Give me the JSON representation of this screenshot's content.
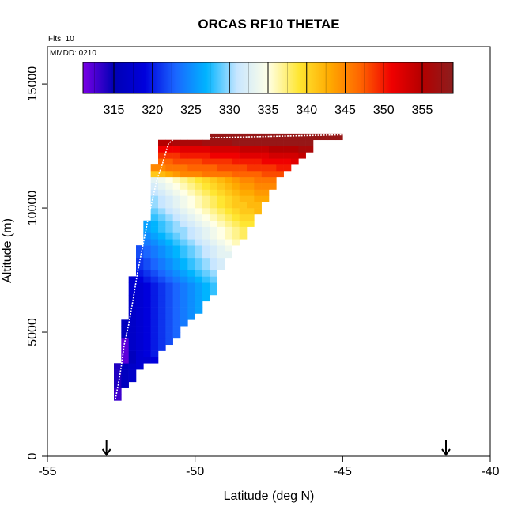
{
  "chart_data": {
    "type": "heatmap",
    "title": "ORCAS RF10 THETAE",
    "annotations": {
      "flights": "Flts: 10",
      "date": "MMDD: 0210"
    },
    "xlabel": "Latitude (deg N)",
    "ylabel": "Altitude (m)",
    "xlim": [
      -55,
      -40
    ],
    "ylim": [
      0,
      16500
    ],
    "x_ticks": [
      -55,
      -50,
      -45,
      -40
    ],
    "x_tick_labels": [
      "-55",
      "-50",
      "-45",
      "-40"
    ],
    "y_ticks": [
      0,
      5000,
      10000,
      15000
    ],
    "y_tick_labels": [
      "0",
      "5000",
      "10000",
      "15000"
    ],
    "grid": false,
    "colorbar": {
      "placement": "top-inside",
      "range": [
        311,
        359
      ],
      "ticks": [
        315,
        320,
        325,
        330,
        335,
        340,
        345,
        350,
        355
      ],
      "tick_labels": [
        "315",
        "320",
        "325",
        "330",
        "335",
        "340",
        "345",
        "350",
        "355"
      ],
      "colors": [
        "#7a00e6",
        "#0000b4",
        "#0000dc",
        "#1a66ff",
        "#00b4ff",
        "#c8e6ff",
        "#ffffe6",
        "#ffe632",
        "#ffaa00",
        "#ff6400",
        "#f00000",
        "#b40000",
        "#8c1e1e"
      ]
    },
    "cell_size": {
      "lat_deg": 0.25,
      "alt_m": 250
    },
    "cells_description": "Theta-e (K) gridded by latitude bin (lower edge) and altitude bin (lower edge). Each row: altitude, starting latitude, list of values for consecutive 0.25 deg bins.",
    "cell_rows": [
      {
        "alt": 2250,
        "lat_start": -52.75,
        "values": [
          313
        ]
      },
      {
        "alt": 2500,
        "lat_start": -52.75,
        "values": [
          313
        ]
      },
      {
        "alt": 2750,
        "lat_start": -52.75,
        "values": [
          314,
          316
        ]
      },
      {
        "alt": 3000,
        "lat_start": -52.75,
        "values": [
          314,
          316,
          317
        ]
      },
      {
        "alt": 3250,
        "lat_start": -52.75,
        "values": [
          314,
          316,
          317
        ]
      },
      {
        "alt": 3500,
        "lat_start": -52.75,
        "values": [
          314,
          316,
          317,
          318
        ]
      },
      {
        "alt": 3750,
        "lat_start": -52.5,
        "values": [
          312,
          316,
          318,
          318,
          319
        ]
      },
      {
        "alt": 4000,
        "lat_start": -52.5,
        "values": [
          312,
          316,
          318,
          319,
          320
        ]
      },
      {
        "alt": 4250,
        "lat_start": -52.5,
        "values": [
          312,
          317,
          318,
          319,
          320,
          321
        ]
      },
      {
        "alt": 4500,
        "lat_start": -52.5,
        "values": [
          312,
          317,
          318,
          319,
          320,
          321,
          322
        ]
      },
      {
        "alt": 4750,
        "lat_start": -52.5,
        "values": [
          316,
          317,
          318,
          319,
          320,
          321,
          322,
          323
        ]
      },
      {
        "alt": 5000,
        "lat_start": -52.5,
        "values": [
          316,
          317,
          318,
          319,
          320,
          321,
          322,
          323
        ]
      },
      {
        "alt": 5250,
        "lat_start": -52.5,
        "values": [
          316,
          317,
          318,
          319,
          320,
          321,
          322,
          323,
          324
        ]
      },
      {
        "alt": 5500,
        "lat_start": -52.25,
        "values": [
          317,
          318,
          319,
          320,
          321,
          322,
          323,
          324,
          325
        ]
      },
      {
        "alt": 5750,
        "lat_start": -52.25,
        "values": [
          317,
          318,
          319,
          320,
          321,
          322,
          323,
          324,
          325,
          326
        ]
      },
      {
        "alt": 6000,
        "lat_start": -52.25,
        "values": [
          317,
          318,
          319,
          320,
          321,
          322,
          323,
          324,
          325,
          326
        ]
      },
      {
        "alt": 6250,
        "lat_start": -52.25,
        "values": [
          317,
          318,
          319,
          320,
          321,
          322,
          323,
          324,
          325,
          326,
          327
        ]
      },
      {
        "alt": 6500,
        "lat_start": -52.25,
        "values": [
          318,
          318,
          319,
          320,
          321,
          322,
          323,
          324,
          325,
          326,
          327,
          328
        ]
      },
      {
        "alt": 6750,
        "lat_start": -52.25,
        "values": [
          318,
          318,
          319,
          320,
          321,
          322,
          323,
          324,
          325,
          326,
          327,
          328
        ]
      },
      {
        "alt": 7000,
        "lat_start": -52.25,
        "values": [
          318,
          319,
          320,
          321,
          322,
          323,
          324,
          325,
          326,
          327,
          328,
          329
        ]
      },
      {
        "alt": 7250,
        "lat_start": -52.0,
        "values": [
          320,
          321,
          322,
          323,
          324,
          325,
          326,
          327,
          328,
          329,
          330
        ]
      },
      {
        "alt": 7500,
        "lat_start": -52.0,
        "values": [
          321,
          322,
          323,
          324,
          325,
          326,
          327,
          328,
          329,
          330,
          331,
          332
        ]
      },
      {
        "alt": 7750,
        "lat_start": -52.0,
        "values": [
          321,
          322,
          323,
          324,
          325,
          326,
          327,
          328,
          329,
          330,
          331,
          332
        ]
      },
      {
        "alt": 8000,
        "lat_start": -52.0,
        "values": [
          322,
          323,
          324,
          325,
          326,
          327,
          328,
          329,
          330,
          331,
          332,
          333,
          333
        ]
      },
      {
        "alt": 8250,
        "lat_start": -52.0,
        "values": [
          322,
          323,
          324,
          325,
          326,
          327,
          328,
          329,
          330,
          331,
          332,
          333,
          334
        ]
      },
      {
        "alt": 8500,
        "lat_start": -51.75,
        "values": [
          324,
          325,
          326,
          327,
          328,
          329,
          330,
          331,
          332,
          333,
          334,
          335,
          336
        ]
      },
      {
        "alt": 8750,
        "lat_start": -51.75,
        "values": [
          325,
          326,
          327,
          328,
          329,
          330,
          331,
          332,
          333,
          334,
          335,
          336,
          337,
          338
        ]
      },
      {
        "alt": 9000,
        "lat_start": -51.75,
        "values": [
          326,
          327,
          328,
          329,
          330,
          330,
          331,
          332,
          333,
          334,
          335,
          336,
          337,
          338
        ]
      },
      {
        "alt": 9250,
        "lat_start": -51.75,
        "values": [
          326,
          327,
          328,
          329,
          330,
          331,
          332,
          333,
          334,
          335,
          336,
          337,
          338,
          339,
          339
        ]
      },
      {
        "alt": 9500,
        "lat_start": -51.5,
        "values": [
          328,
          329,
          330,
          331,
          332,
          333,
          334,
          335,
          336,
          337,
          338,
          339,
          340,
          340
        ]
      },
      {
        "alt": 9750,
        "lat_start": -51.5,
        "values": [
          329,
          330,
          331,
          332,
          333,
          334,
          335,
          336,
          337,
          338,
          339,
          340,
          341,
          341,
          342
        ]
      },
      {
        "alt": 10000,
        "lat_start": -51.5,
        "values": [
          330,
          331,
          332,
          333,
          334,
          335,
          336,
          337,
          338,
          339,
          340,
          341,
          341,
          342,
          342
        ]
      },
      {
        "alt": 10250,
        "lat_start": -51.5,
        "values": [
          330,
          331,
          332,
          333,
          334,
          335,
          336,
          337,
          338,
          339,
          340,
          341,
          342,
          342,
          343,
          343
        ]
      },
      {
        "alt": 10500,
        "lat_start": -51.5,
        "values": [
          331,
          332,
          333,
          334,
          335,
          336,
          337,
          338,
          339,
          340,
          341,
          342,
          343,
          343,
          344,
          344
        ]
      },
      {
        "alt": 10750,
        "lat_start": -51.5,
        "values": [
          332,
          333,
          334,
          335,
          336,
          337,
          338,
          339,
          340,
          341,
          342,
          343,
          344,
          344,
          345,
          345,
          345
        ]
      },
      {
        "alt": 11000,
        "lat_start": -51.5,
        "values": [
          333,
          334,
          335,
          336,
          337,
          338,
          339,
          340,
          341,
          342,
          343,
          344,
          345,
          345,
          346,
          346,
          346
        ]
      },
      {
        "alt": 11250,
        "lat_start": -51.5,
        "values": [
          341,
          342,
          343,
          344,
          345,
          345,
          345,
          346,
          346,
          346,
          346,
          347,
          347,
          347,
          347,
          348,
          348,
          348
        ]
      },
      {
        "alt": 11500,
        "lat_start": -51.5,
        "values": [
          345,
          345,
          346,
          346,
          346,
          347,
          347,
          347,
          347,
          348,
          348,
          348,
          348,
          349,
          349,
          349,
          349,
          350,
          350
        ]
      },
      {
        "alt": 11750,
        "lat_start": -51.25,
        "values": [
          347,
          347,
          348,
          348,
          348,
          348,
          349,
          349,
          349,
          349,
          350,
          350,
          350,
          350,
          351,
          351,
          351,
          351,
          352
        ]
      },
      {
        "alt": 12000,
        "lat_start": -51.25,
        "values": [
          349,
          349,
          349,
          350,
          350,
          350,
          350,
          351,
          351,
          351,
          351,
          352,
          352,
          352,
          352,
          353,
          353,
          353,
          353,
          354
        ]
      },
      {
        "alt": 12250,
        "lat_start": -51.25,
        "values": [
          351,
          351,
          351,
          352,
          352,
          352,
          352,
          353,
          353,
          353,
          353,
          354,
          354,
          354,
          354,
          355,
          355,
          355,
          355,
          356,
          356
        ]
      },
      {
        "alt": 12500,
        "lat_start": -51.25,
        "values": [
          355,
          355,
          356,
          356,
          356,
          356,
          357,
          357,
          357,
          357,
          358,
          358,
          358,
          358,
          358,
          358,
          358,
          358,
          358,
          358,
          358
        ]
      },
      {
        "alt": 12750,
        "lat_start": -49.5,
        "values": [
          358,
          358,
          358,
          358,
          358,
          358,
          358,
          358,
          358,
          358,
          358,
          358,
          358,
          358,
          358,
          358,
          358,
          358
        ]
      }
    ],
    "flight_track": {
      "name": "",
      "points": [
        [
          -52.7,
          2300
        ],
        [
          -52.6,
          2900
        ],
        [
          -52.5,
          3600
        ],
        [
          -52.4,
          4500
        ],
        [
          -52.25,
          5300
        ],
        [
          -52.1,
          6300
        ],
        [
          -51.95,
          7400
        ],
        [
          -51.8,
          8300
        ],
        [
          -51.6,
          9500
        ],
        [
          -51.45,
          10300
        ],
        [
          -51.3,
          11100
        ],
        [
          -51.1,
          11800
        ],
        [
          -50.9,
          12600
        ],
        [
          -50.7,
          12800
        ],
        [
          -45.0,
          12950
        ]
      ]
    },
    "arrow_markers": [
      -53.0,
      -41.5
    ]
  }
}
